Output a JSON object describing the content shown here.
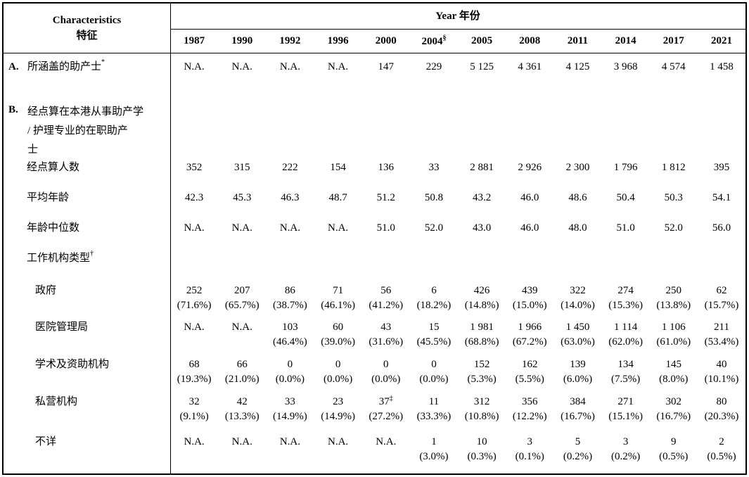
{
  "colors": {
    "text": "#000000",
    "background": "#ffffff",
    "border": "#000000"
  },
  "header": {
    "characteristics_en": "Characteristics",
    "characteristics_zh": "特征",
    "year_title": "Year  年份",
    "years": [
      {
        "label": "1987"
      },
      {
        "label": "1990"
      },
      {
        "label": "1992"
      },
      {
        "label": "1996"
      },
      {
        "label": "2000"
      },
      {
        "label": "2004",
        "sup": "§"
      },
      {
        "label": "2005"
      },
      {
        "label": "2008"
      },
      {
        "label": "2011"
      },
      {
        "label": "2014"
      },
      {
        "label": "2017"
      },
      {
        "label": "2021"
      }
    ]
  },
  "rows": [
    {
      "id": "row-a-covered-midwives",
      "section": "A.",
      "label": "所涵盖的助产士",
      "sup": "*",
      "indent": 0,
      "cells": [
        "N.A.",
        "N.A.",
        "N.A.",
        "N.A.",
        "147",
        "229",
        "5 125",
        "4 361",
        "4 125",
        "3 968",
        "4 574",
        "1 458"
      ]
    },
    {
      "id": "row-b-enumerated-midwives",
      "section": "B.",
      "label": "经点算在本港从事助产学\n/ 护理专业的在职助产\n士",
      "indent": 0,
      "cells": []
    },
    {
      "id": "row-enumerated-count",
      "label": "经点算人数",
      "indent": 1,
      "cells": [
        "352",
        "315",
        "222",
        "154",
        "136",
        "33",
        "2 881",
        "2 926",
        "2 300",
        "1 796",
        "1 812",
        "395"
      ]
    },
    {
      "id": "row-mean-age",
      "label": "平均年龄",
      "indent": 1,
      "cells": [
        "42.3",
        "45.3",
        "46.3",
        "48.7",
        "51.2",
        "50.8",
        "43.2",
        "46.0",
        "48.6",
        "50.4",
        "50.3",
        "54.1"
      ]
    },
    {
      "id": "row-median-age",
      "label": "年龄中位数",
      "indent": 1,
      "cells": [
        "N.A.",
        "N.A.",
        "N.A.",
        "N.A.",
        "51.0",
        "52.0",
        "43.0",
        "46.0",
        "48.0",
        "51.0",
        "52.0",
        "56.0"
      ]
    },
    {
      "id": "row-sector-type",
      "label": "工作机构类型",
      "sup": "†",
      "indent": 1,
      "cells": []
    },
    {
      "id": "row-government",
      "label": "政府",
      "indent": 2,
      "cells": [
        {
          "v": "252",
          "p": "(71.6%)"
        },
        {
          "v": "207",
          "p": "(65.7%)"
        },
        {
          "v": "86",
          "p": "(38.7%)"
        },
        {
          "v": "71",
          "p": "(46.1%)"
        },
        {
          "v": "56",
          "p": "(41.2%)"
        },
        {
          "v": "6",
          "p": "(18.2%)"
        },
        {
          "v": "426",
          "p": "(14.8%)"
        },
        {
          "v": "439",
          "p": "(15.0%)"
        },
        {
          "v": "322",
          "p": "(14.0%)"
        },
        {
          "v": "274",
          "p": "(15.3%)"
        },
        {
          "v": "250",
          "p": "(13.8%)"
        },
        {
          "v": "62",
          "p": "(15.7%)"
        }
      ]
    },
    {
      "id": "row-hospital-authority",
      "label": "医院管理局",
      "indent": 2,
      "cells": [
        {
          "v": "N.A."
        },
        {
          "v": "N.A."
        },
        {
          "v": "103",
          "p": "(46.4%)"
        },
        {
          "v": "60",
          "p": "(39.0%)"
        },
        {
          "v": "43",
          "p": "(31.6%)"
        },
        {
          "v": "15",
          "p": "(45.5%)"
        },
        {
          "v": "1 981",
          "p": "(68.8%)"
        },
        {
          "v": "1 966",
          "p": "(67.2%)"
        },
        {
          "v": "1 450",
          "p": "(63.0%)"
        },
        {
          "v": "1 114",
          "p": "(62.0%)"
        },
        {
          "v": "1 106",
          "p": "(61.0%)"
        },
        {
          "v": "211",
          "p": "(53.4%)"
        }
      ]
    },
    {
      "id": "row-academic-subvented",
      "label": "学术及资助机构",
      "indent": 2,
      "cells": [
        {
          "v": "68",
          "p": "(19.3%)"
        },
        {
          "v": "66",
          "p": "(21.0%)"
        },
        {
          "v": "0",
          "p": "(0.0%)"
        },
        {
          "v": "0",
          "p": "(0.0%)"
        },
        {
          "v": "0",
          "p": "(0.0%)"
        },
        {
          "v": "0",
          "p": "(0.0%)"
        },
        {
          "v": "152",
          "p": "(5.3%)"
        },
        {
          "v": "162",
          "p": "(5.5%)"
        },
        {
          "v": "139",
          "p": "(6.0%)"
        },
        {
          "v": "134",
          "p": "(7.5%)"
        },
        {
          "v": "145",
          "p": "(8.0%)"
        },
        {
          "v": "40",
          "p": "(10.1%)"
        }
      ]
    },
    {
      "id": "row-private",
      "label": "私营机构",
      "indent": 2,
      "cells": [
        {
          "v": "32",
          "p": "(9.1%)"
        },
        {
          "v": "42",
          "p": "(13.3%)"
        },
        {
          "v": "33",
          "p": "(14.9%)"
        },
        {
          "v": "23",
          "p": "(14.9%)"
        },
        {
          "v": "37",
          "sup": "‡",
          "p": "(27.2%)"
        },
        {
          "v": "11",
          "p": "(33.3%)"
        },
        {
          "v": "312",
          "p": "(10.8%)"
        },
        {
          "v": "356",
          "p": "(12.2%)"
        },
        {
          "v": "384",
          "p": "(16.7%)"
        },
        {
          "v": "271",
          "p": "(15.1%)"
        },
        {
          "v": "302",
          "p": "(16.7%)"
        },
        {
          "v": "80",
          "p": "(20.3%)"
        }
      ]
    },
    {
      "id": "row-unknown",
      "label": "不详",
      "indent": 2,
      "cells": [
        {
          "v": "N.A."
        },
        {
          "v": "N.A."
        },
        {
          "v": "N.A."
        },
        {
          "v": "N.A."
        },
        {
          "v": "N.A."
        },
        {
          "v": "1",
          "p": "(3.0%)"
        },
        {
          "v": "10",
          "p": "(0.3%)"
        },
        {
          "v": "3",
          "p": "(0.1%)"
        },
        {
          "v": "5",
          "p": "(0.2%)"
        },
        {
          "v": "3",
          "p": "(0.2%)"
        },
        {
          "v": "9",
          "p": "(0.5%)"
        },
        {
          "v": "2",
          "p": "(0.5%)"
        }
      ]
    }
  ]
}
